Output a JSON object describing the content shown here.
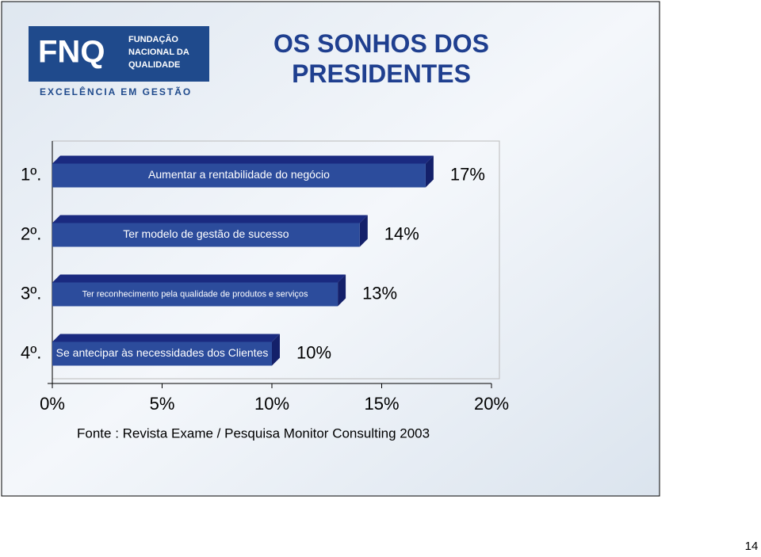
{
  "logo": {
    "mark": "FNQ",
    "org_line1": "FUNDAÇÃO",
    "org_line2": "NACIONAL DA",
    "org_line3": "QUALIDADE",
    "tagline": "EXCELÊNCIA EM GESTÃO"
  },
  "chart_data": {
    "type": "bar",
    "orientation": "horizontal",
    "title": "OS SONHOS DOS PRESIDENTES",
    "categories": [
      "1º.",
      "2º.",
      "3º.",
      "4º."
    ],
    "bar_labels": [
      "Aumentar a rentabilidade do negócio",
      "Ter modelo de gestão de sucesso",
      "Ter reconhecimento pela qualidade de produtos e serviços",
      "Se antecipar às necessidades dos Clientes"
    ],
    "values": [
      17,
      14,
      13,
      10
    ],
    "value_labels": [
      "17%",
      "14%",
      "13%",
      "10%"
    ],
    "color": "#2c4c9c",
    "xlim": [
      0,
      20
    ],
    "xticks": [
      {
        "value": 0,
        "label": "0%"
      },
      {
        "value": 5,
        "label": "5%"
      },
      {
        "value": 10,
        "label": "10%"
      },
      {
        "value": 15,
        "label": "15%"
      },
      {
        "value": 20,
        "label": "20%"
      }
    ],
    "source": "Fonte : Revista Exame / Pesquisa Monitor Consulting 2003"
  },
  "page_number": "14"
}
